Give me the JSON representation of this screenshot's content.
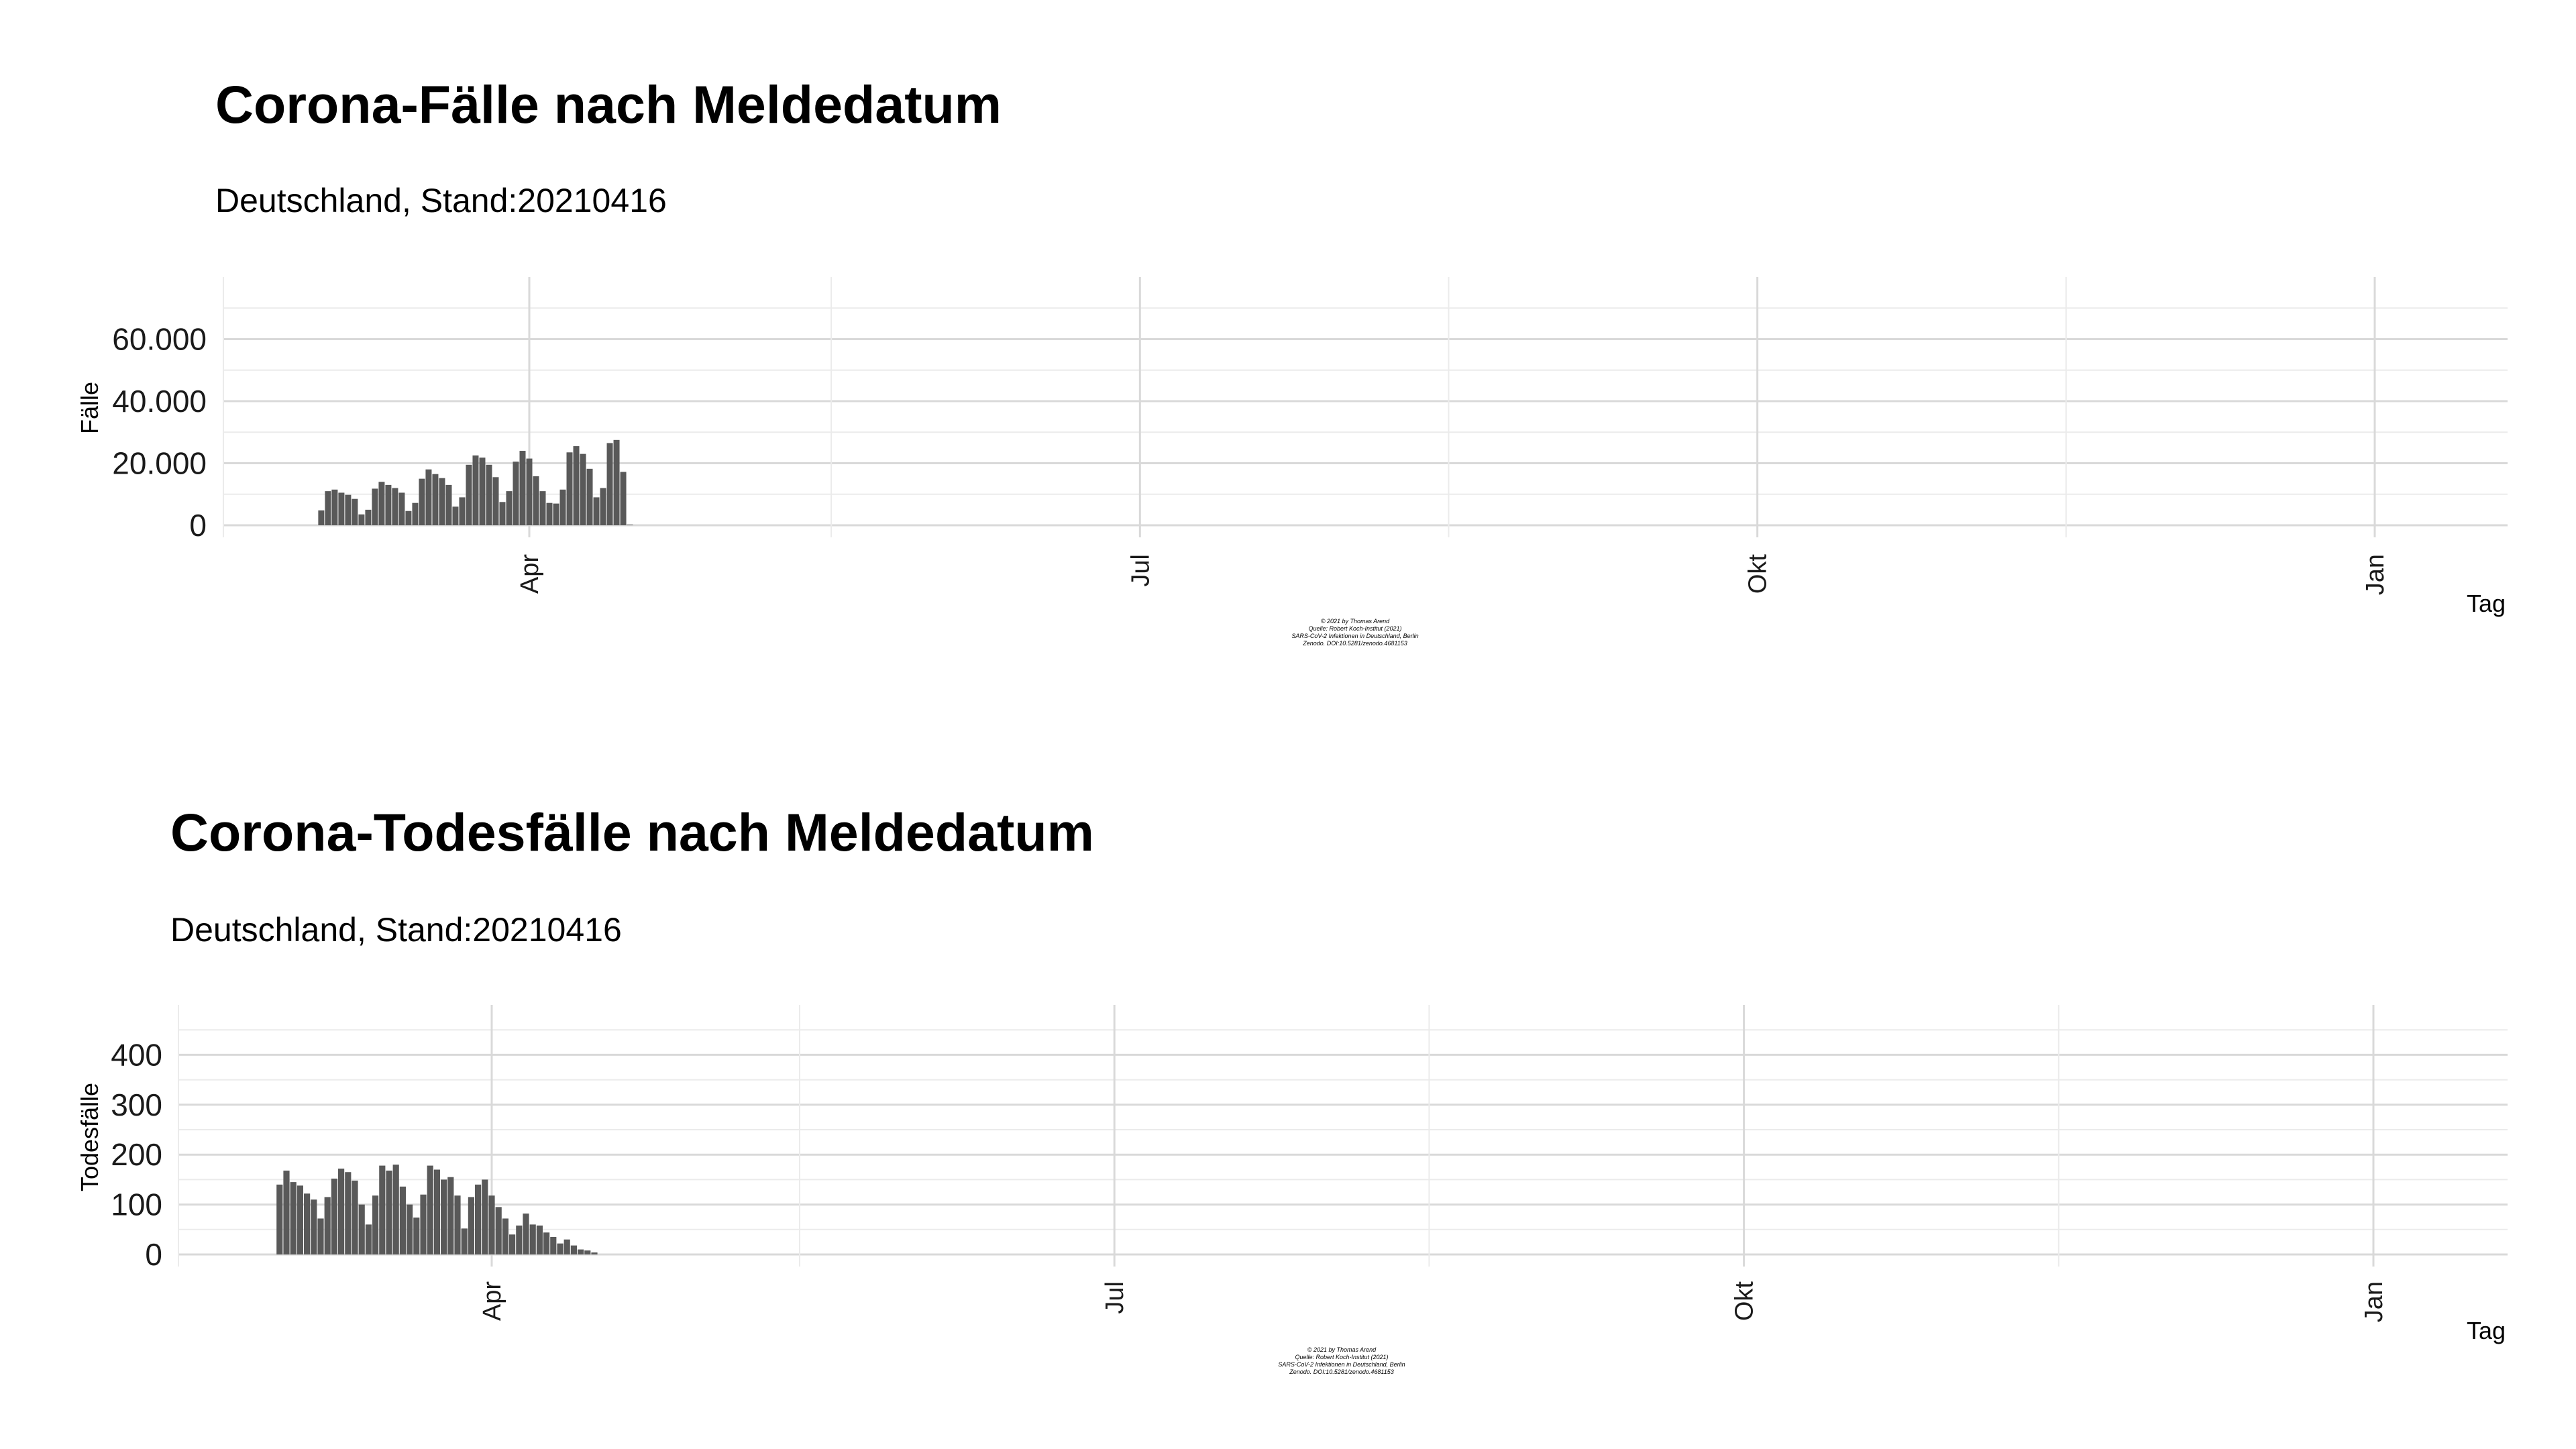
{
  "chart_data": [
    {
      "type": "bar",
      "title": "Corona-Fälle nach Meldedatum",
      "subtitle": "Deutschland, Stand:20210416",
      "xlabel": "Tag",
      "ylabel": "Fälle",
      "x_ticks": [
        "Apr",
        "Jul",
        "Okt",
        "Jan"
      ],
      "y_ticks": [
        "0",
        "20.000",
        "40.000",
        "60.000"
      ],
      "ylim": [
        0,
        80000
      ],
      "grid": true,
      "caption": [
        "© 2021 by Thomas Arend",
        "Quelle: Robert Koch-Institut (2021)",
        "SARS-CoV-2 Infektionen in Deutschland, Berlin",
        "Zenodo. DOI:10.5281/zenodo.4681153"
      ],
      "x": [
        "2021-03-01",
        "2021-03-02",
        "2021-03-03",
        "2021-03-04",
        "2021-03-05",
        "2021-03-06",
        "2021-03-07",
        "2021-03-08",
        "2021-03-09",
        "2021-03-10",
        "2021-03-11",
        "2021-03-12",
        "2021-03-13",
        "2021-03-14",
        "2021-03-15",
        "2021-03-16",
        "2021-03-17",
        "2021-03-18",
        "2021-03-19",
        "2021-03-20",
        "2021-03-21",
        "2021-03-22",
        "2021-03-23",
        "2021-03-24",
        "2021-03-25",
        "2021-03-26",
        "2021-03-27",
        "2021-03-28",
        "2021-03-29",
        "2021-03-30",
        "2021-03-31",
        "2021-04-01",
        "2021-04-02",
        "2021-04-03",
        "2021-04-04",
        "2021-04-05",
        "2021-04-06",
        "2021-04-07",
        "2021-04-08",
        "2021-04-09",
        "2021-04-10",
        "2021-04-11",
        "2021-04-12",
        "2021-04-13",
        "2021-04-14",
        "2021-04-15",
        "2021-04-16"
      ],
      "values": [
        4800,
        11000,
        11500,
        10500,
        9800,
        8500,
        3500,
        5000,
        11800,
        14000,
        13000,
        12000,
        10500,
        4600,
        7200,
        15000,
        18000,
        16500,
        15200,
        13000,
        6000,
        9000,
        19500,
        22500,
        21800,
        19500,
        15500,
        7500,
        11000,
        20500,
        24000,
        21500,
        15800,
        11000,
        7200,
        7000,
        11500,
        23500,
        25500,
        23000,
        18200,
        9000,
        12000,
        26500,
        27500,
        17200,
        200
      ]
    },
    {
      "type": "bar",
      "title": "Corona-Todesfälle nach Meldedatum",
      "subtitle": "Deutschland, Stand:20210416",
      "xlabel": "Tag",
      "ylabel": "Todesfälle",
      "x_ticks": [
        "Apr",
        "Jul",
        "Okt",
        "Jan"
      ],
      "y_ticks": [
        "0",
        "100",
        "200",
        "300",
        "400"
      ],
      "ylim": [
        0,
        500
      ],
      "grid": true,
      "caption": [
        "© 2021 by Thomas Arend",
        "Quelle: Robert Koch-Institut (2021)",
        "SARS-CoV-2 Infektionen in Deutschland, Berlin",
        "Zenodo. DOI:10.5281/zenodo.4681153"
      ],
      "x": [
        "2021-03-01",
        "2021-03-02",
        "2021-03-03",
        "2021-03-04",
        "2021-03-05",
        "2021-03-06",
        "2021-03-07",
        "2021-03-08",
        "2021-03-09",
        "2021-03-10",
        "2021-03-11",
        "2021-03-12",
        "2021-03-13",
        "2021-03-14",
        "2021-03-15",
        "2021-03-16",
        "2021-03-17",
        "2021-03-18",
        "2021-03-19",
        "2021-03-20",
        "2021-03-21",
        "2021-03-22",
        "2021-03-23",
        "2021-03-24",
        "2021-03-25",
        "2021-03-26",
        "2021-03-27",
        "2021-03-28",
        "2021-03-29",
        "2021-03-30",
        "2021-03-31",
        "2021-04-01",
        "2021-04-02",
        "2021-04-03",
        "2021-04-04",
        "2021-04-05",
        "2021-04-06",
        "2021-04-07",
        "2021-04-08",
        "2021-04-09",
        "2021-04-10",
        "2021-04-11",
        "2021-04-12",
        "2021-04-13",
        "2021-04-14",
        "2021-04-15",
        "2021-04-16"
      ],
      "values": [
        140,
        168,
        145,
        138,
        122,
        110,
        72,
        115,
        152,
        172,
        165,
        148,
        100,
        60,
        118,
        178,
        168,
        180,
        136,
        100,
        74,
        120,
        178,
        170,
        150,
        155,
        118,
        52,
        115,
        140,
        150,
        118,
        95,
        72,
        40,
        58,
        82,
        60,
        58,
        44,
        35,
        22,
        30,
        18,
        10,
        8,
        4
      ]
    }
  ]
}
